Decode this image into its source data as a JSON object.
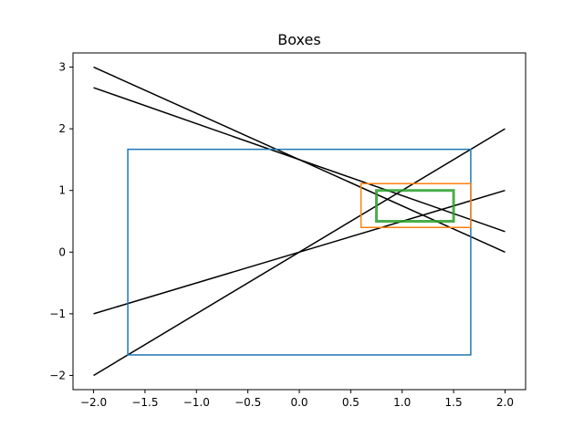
{
  "chart_data": {
    "type": "line",
    "title": "Boxes",
    "xlabel": "",
    "ylabel": "",
    "xlim": [
      -2.2,
      2.2
    ],
    "ylim": [
      -2.23,
      3.23
    ],
    "xticks": [
      -2.0,
      -1.5,
      -1.0,
      -0.5,
      0.0,
      0.5,
      1.0,
      1.5,
      2.0
    ],
    "xtick_labels": [
      "−2.0",
      "−1.5",
      "−1.0",
      "−0.5",
      "0.0",
      "0.5",
      "1.0",
      "1.5",
      "2.0"
    ],
    "yticks": [
      -2,
      -1,
      0,
      1,
      2,
      3
    ],
    "ytick_labels": [
      "−2",
      "−1",
      "0",
      "1",
      "2",
      "3"
    ],
    "grid": false,
    "lines": [
      {
        "x": [
          -2.0,
          2.0
        ],
        "y": [
          3.0,
          0.0
        ],
        "color": "#000000"
      },
      {
        "x": [
          -2.0,
          2.0
        ],
        "y": [
          2.667,
          0.333
        ],
        "color": "#000000"
      },
      {
        "x": [
          -2.0,
          2.0
        ],
        "y": [
          -2.0,
          2.0
        ],
        "color": "#000000"
      },
      {
        "x": [
          -2.0,
          2.0
        ],
        "y": [
          -1.0,
          1.0
        ],
        "color": "#000000"
      }
    ],
    "boxes": [
      {
        "x0": -1.667,
        "x1": 1.667,
        "y0": -1.667,
        "y1": 1.667,
        "color": "#1f77b4",
        "linewidth": 1.5
      },
      {
        "x0": 0.6,
        "x1": 1.667,
        "y0": 0.4,
        "y1": 1.111,
        "color": "#ff7f0e",
        "linewidth": 1.5
      },
      {
        "x0": 0.75,
        "x1": 1.5,
        "y0": 0.5,
        "y1": 1.0,
        "color": "#2ca02c",
        "linewidth": 3,
        "opacity": 0.85
      }
    ]
  }
}
